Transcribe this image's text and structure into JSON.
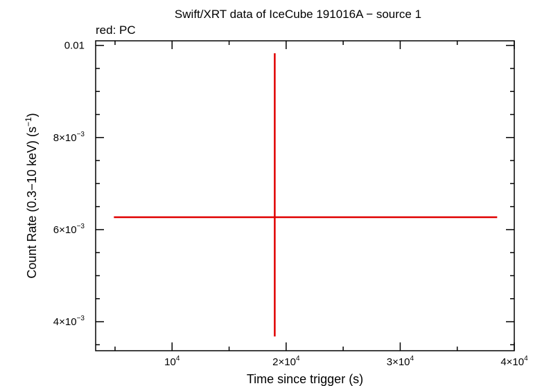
{
  "chart_data": {
    "type": "scatter",
    "title": "Swift/XRT data of IceCube 191016A − source 1",
    "subtitle": "red: PC",
    "xlabel": "Time since trigger (s)",
    "ylabel_parts": {
      "main": "Count Rate (0.3−10 keV) (s",
      "sup": "−1",
      "end": ")"
    },
    "xlim": [
      3300,
      40000
    ],
    "ylim": [
      0.00337,
      0.0101
    ],
    "x_ticks": [
      {
        "value": 10000,
        "mant": "",
        "exp": "4"
      },
      {
        "value": 20000,
        "mant": "2×",
        "exp": "4"
      },
      {
        "value": 30000,
        "mant": "3×",
        "exp": "4"
      },
      {
        "value": 40000,
        "mant": "4×",
        "exp": "4"
      }
    ],
    "y_ticks": [
      {
        "value": 0.01,
        "text": "0.01"
      },
      {
        "value": 0.008,
        "mant": "8×",
        "exp": "−3"
      },
      {
        "value": 0.006,
        "mant": "6×",
        "exp": "−3"
      },
      {
        "value": 0.004,
        "mant": "4×",
        "exp": "−3"
      }
    ],
    "series": [
      {
        "color": "#e00000",
        "points": [
          {
            "x": 19000,
            "y": 0.00627,
            "x_lo": 4900,
            "x_hi": 38500,
            "y_lo": 0.00368,
            "y_hi": 0.00983
          }
        ]
      }
    ]
  }
}
